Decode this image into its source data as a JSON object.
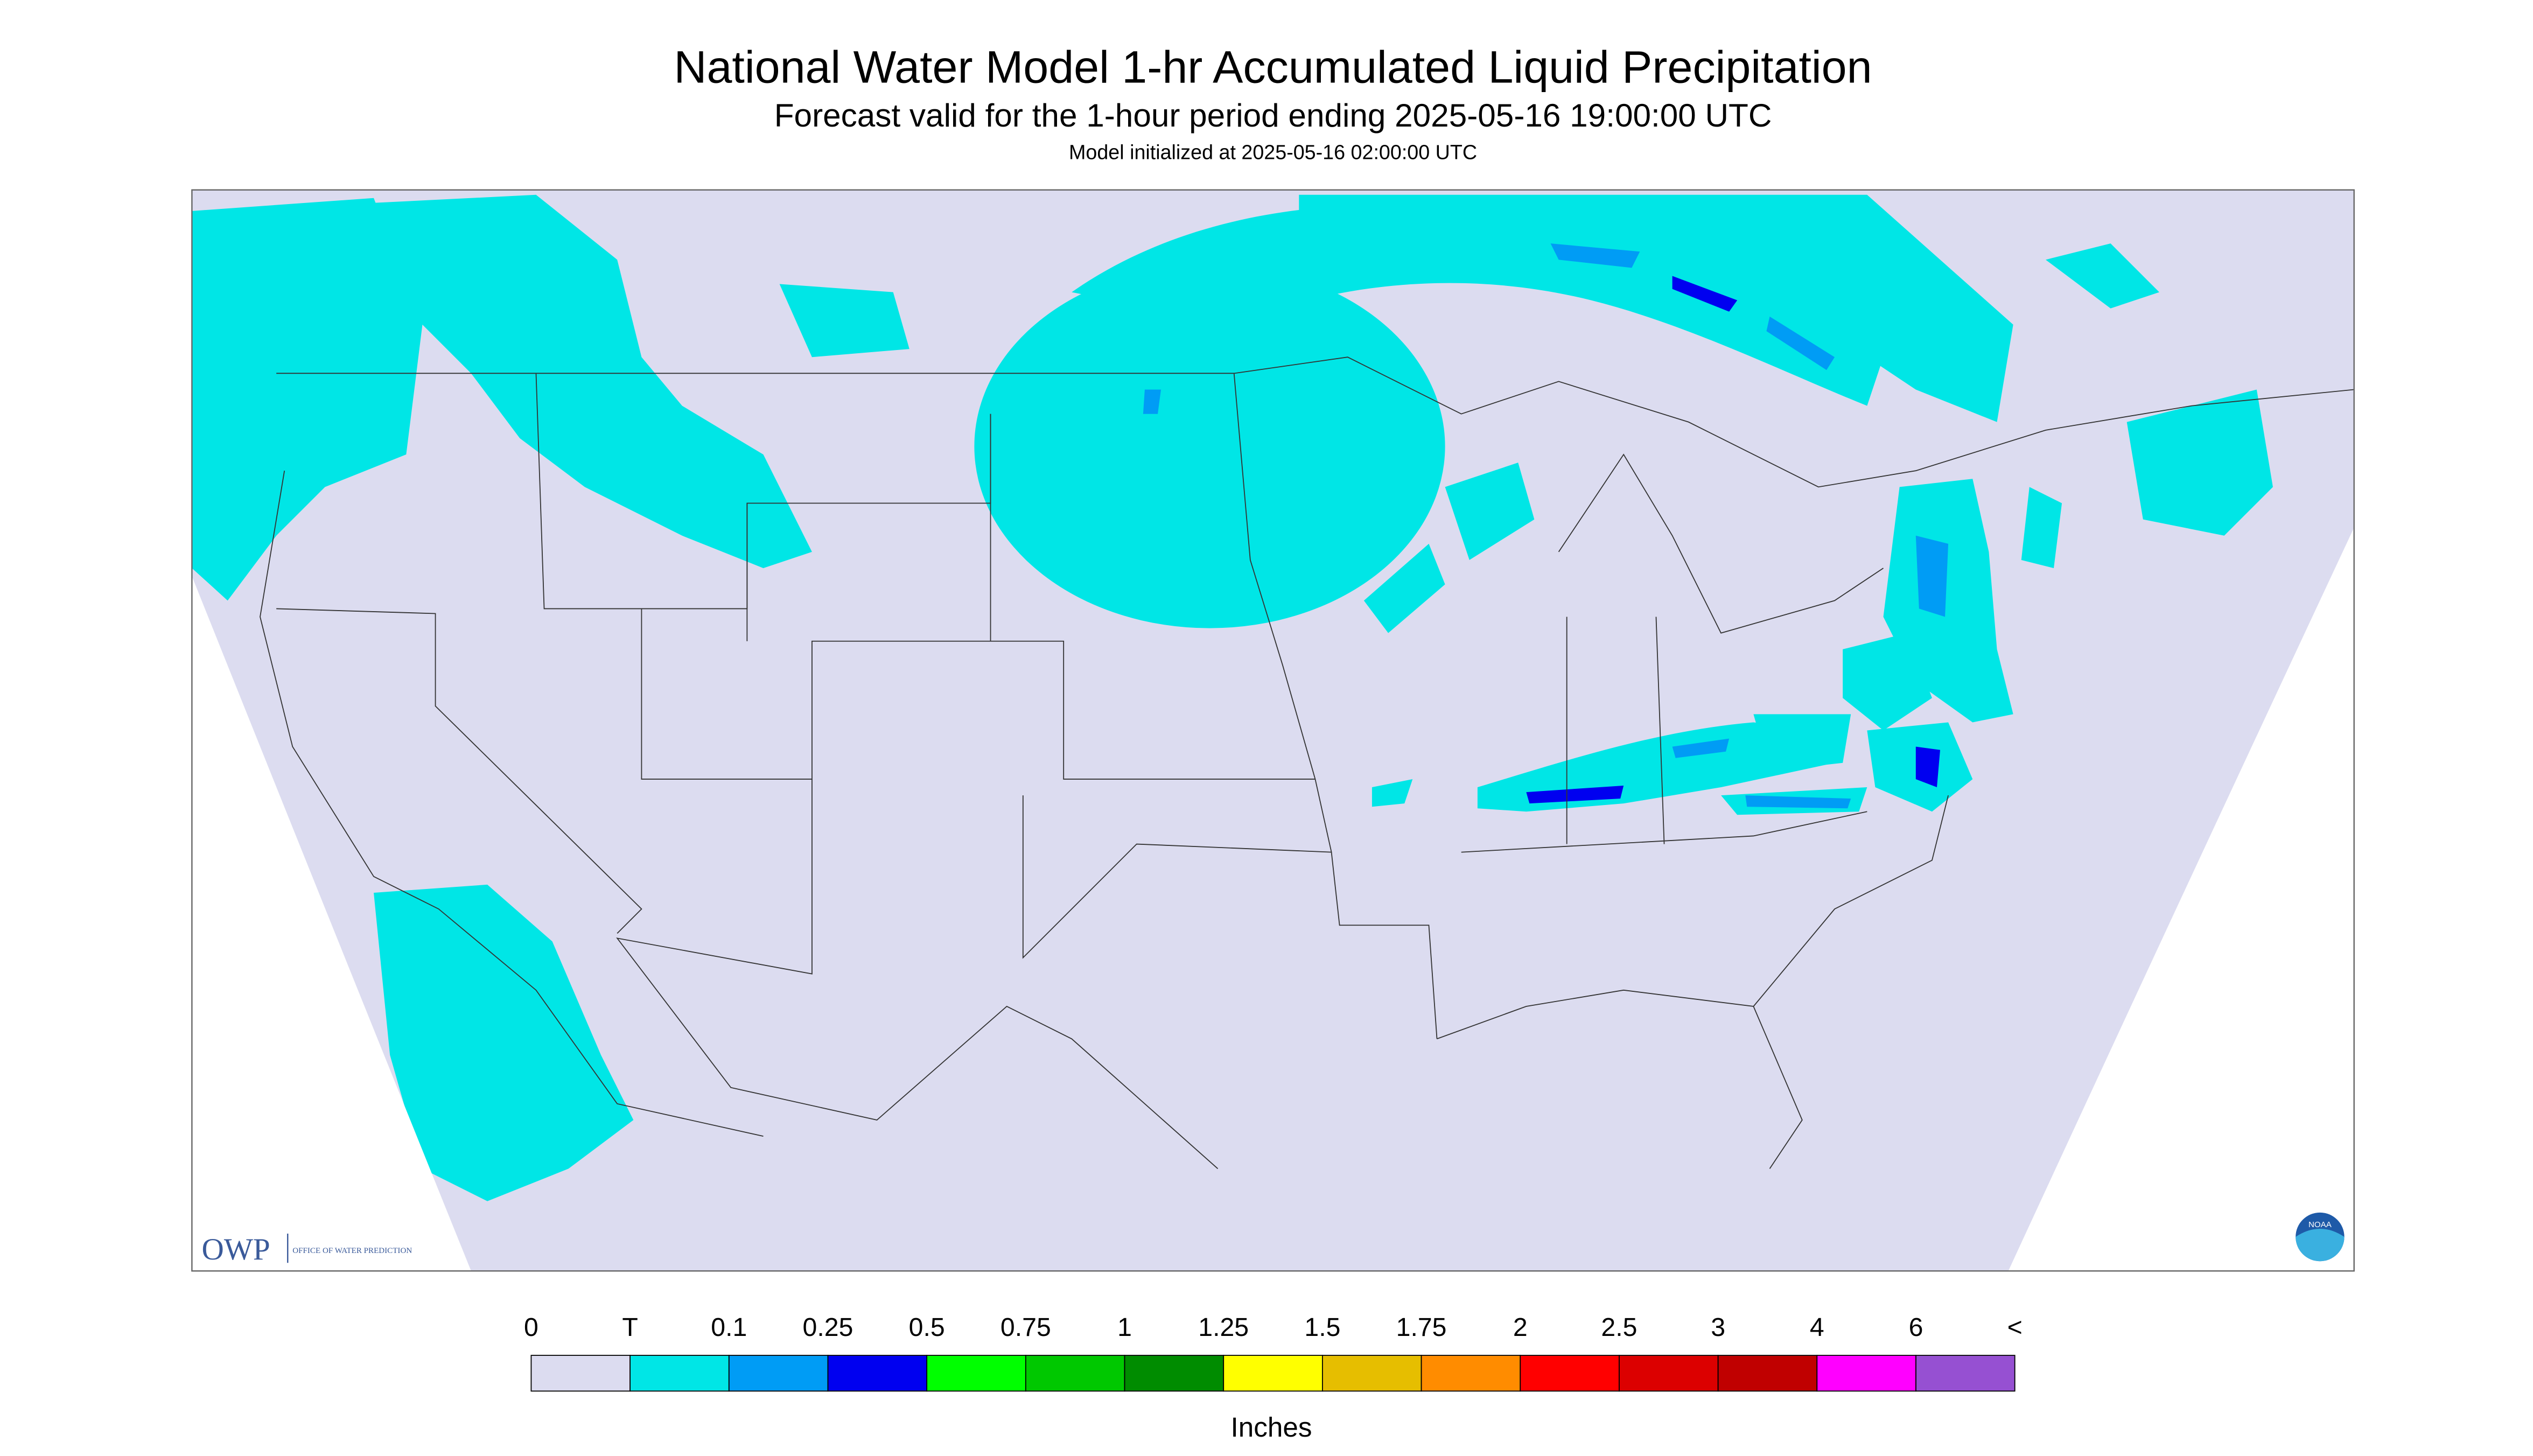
{
  "header": {
    "title": "National Water Model 1-hr Accumulated Liquid Precipitation",
    "subtitle": "Forecast valid for the 1-hour period ending 2025-05-16 19:00:00 UTC",
    "init": "Model initialized at 2025-05-16 02:00:00 UTC"
  },
  "legend": {
    "labels": [
      "0",
      "T",
      "0.1",
      "0.25",
      "0.5",
      "0.75",
      "1",
      "1.25",
      "1.5",
      "1.75",
      "2",
      "2.5",
      "3",
      "4",
      "6",
      "<"
    ],
    "colors": [
      "#dcdcf0",
      "#00e6e6",
      "#009cf5",
      "#0000f0",
      "#00ff00",
      "#00c800",
      "#008c00",
      "#ffff00",
      "#e6be00",
      "#ff8c00",
      "#ff0000",
      "#dc0000",
      "#c00000",
      "#ff00ff",
      "#9650d2"
    ],
    "unit": "Inches"
  },
  "logos": {
    "owp": "OWP",
    "owp_name": "OFFICE OF WATER PREDICTION",
    "noaa": "NOAA"
  }
}
